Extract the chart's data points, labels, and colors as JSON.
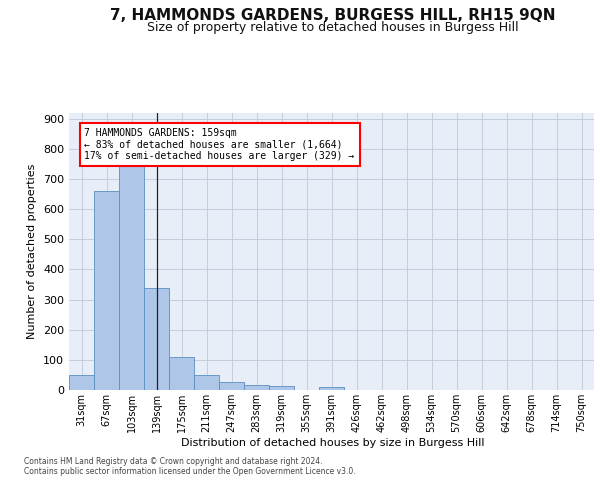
{
  "title": "7, HAMMONDS GARDENS, BURGESS HILL, RH15 9QN",
  "subtitle": "Size of property relative to detached houses in Burgess Hill",
  "xlabel": "Distribution of detached houses by size in Burgess Hill",
  "ylabel": "Number of detached properties",
  "footer_line1": "Contains HM Land Registry data © Crown copyright and database right 2024.",
  "footer_line2": "Contains public sector information licensed under the Open Government Licence v3.0.",
  "bar_labels": [
    "31sqm",
    "67sqm",
    "103sqm",
    "139sqm",
    "175sqm",
    "211sqm",
    "247sqm",
    "283sqm",
    "319sqm",
    "355sqm",
    "391sqm",
    "426sqm",
    "462sqm",
    "498sqm",
    "534sqm",
    "570sqm",
    "606sqm",
    "642sqm",
    "678sqm",
    "714sqm",
    "750sqm"
  ],
  "bar_values": [
    50,
    660,
    748,
    338,
    108,
    50,
    25,
    15,
    12,
    0,
    10,
    0,
    0,
    0,
    0,
    0,
    0,
    0,
    0,
    0,
    0
  ],
  "bar_color": "#aec6e8",
  "bar_edge_color": "#5a8fc0",
  "property_line_x": 3.5,
  "annotation_box_text": "7 HAMMONDS GARDENS: 159sqm\n← 83% of detached houses are smaller (1,664)\n17% of semi-detached houses are larger (329) →",
  "ylim": [
    0,
    920
  ],
  "yticks": [
    0,
    100,
    200,
    300,
    400,
    500,
    600,
    700,
    800,
    900
  ],
  "bg_color": "#e8eef8",
  "grid_color": "#c0c8d8",
  "title_fontsize": 11,
  "subtitle_fontsize": 9
}
